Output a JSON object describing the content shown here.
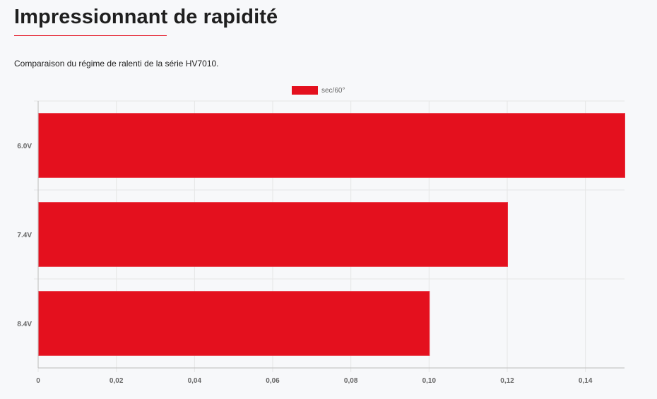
{
  "page": {
    "title": "Impressionnant de rapidité",
    "subtitle": "Comparaison du régime de ralenti de la série HV7010."
  },
  "chart_data": {
    "type": "bar",
    "orientation": "horizontal",
    "categories": [
      "6.0V",
      "7.4V",
      "8.4V"
    ],
    "series": [
      {
        "name": "sec/60°",
        "values": [
          0.15,
          0.12,
          0.1
        ]
      }
    ],
    "xlim": [
      0,
      0.15
    ],
    "xticks": [
      "0",
      "0,02",
      "0,04",
      "0,06",
      "0,08",
      "0,10",
      "0,12",
      "0,14"
    ],
    "xtick_values": [
      0,
      0.02,
      0.04,
      0.06,
      0.08,
      0.1,
      0.12,
      0.14
    ],
    "grid": true,
    "legend_position": "top-center",
    "colors": {
      "bar": "#e4101e",
      "grid": "#e6e6e6",
      "axis": "#bbbbbb",
      "text": "#666666"
    }
  }
}
